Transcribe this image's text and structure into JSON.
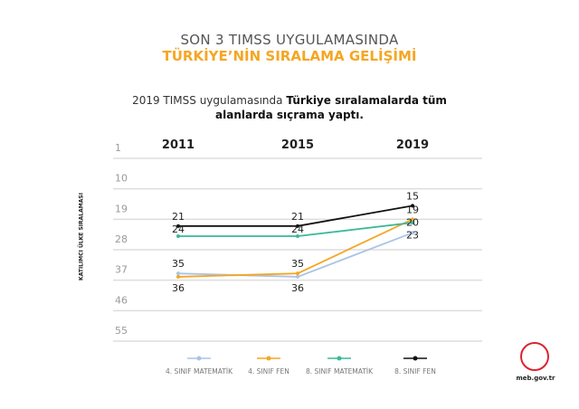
{
  "header": {
    "title_line1": "SON 3 TIMSS UYGULAMASINDA",
    "title_line2": "TÜRKİYE’NİN SIRALAMA GELİŞİMİ",
    "subtitle_normal": "2019 TIMSS uygulamasında ",
    "subtitle_bold": "Türkiye sıralamalarda tüm alanlarda sıçrama yaptı."
  },
  "chart_data": {
    "type": "line",
    "categories": [
      "2011",
      "2015",
      "2019"
    ],
    "ylabel": "KATILIMCI ÜLKE SIRALAMASI",
    "yticks": [
      "1",
      "10",
      "19",
      "28",
      "37",
      "46",
      "55"
    ],
    "ylim": [
      1,
      55
    ],
    "y_inverted": true,
    "grid": true,
    "legend": "bottom",
    "series": [
      {
        "name": "4. SINIF MATEMATİK",
        "color": "#a9c4e6",
        "values": [
          35,
          36,
          23
        ]
      },
      {
        "name": "4. SINIF FEN",
        "color": "#f5a623",
        "values": [
          36,
          35,
          19
        ]
      },
      {
        "name": "8. SINIF MATEMATİK",
        "color": "#3bb89a",
        "values": [
          24,
          24,
          20
        ]
      },
      {
        "name": "8. SINIF FEN",
        "color": "#111111",
        "values": [
          21,
          21,
          15
        ]
      }
    ]
  },
  "footer": {
    "logo_text": "meb.gov.tr"
  }
}
